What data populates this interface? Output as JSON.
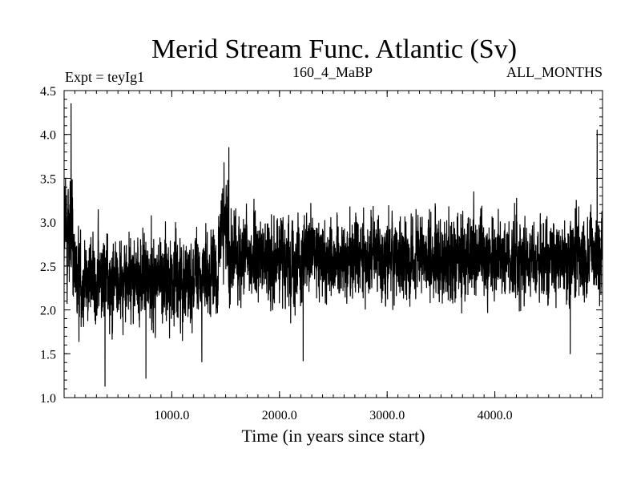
{
  "chart_data": {
    "type": "line",
    "title": "Merid Stream Func. Atlantic (Sv)",
    "subtitle_left": "Expt = teyIg1",
    "subtitle_center": "160_4_MaBP",
    "subtitle_right": "ALL_MONTHS",
    "xlabel": "Time (in years since start)",
    "ylabel": "",
    "xlim": [
      0,
      5000
    ],
    "ylim": [
      1.0,
      4.5
    ],
    "x_ticks": [
      1000,
      2000,
      3000,
      4000
    ],
    "x_tick_labels": [
      "1000.0",
      "2000.0",
      "3000.0",
      "4000.0"
    ],
    "y_ticks": [
      1.0,
      1.5,
      2.0,
      2.5,
      3.0,
      3.5,
      4.0,
      4.5
    ],
    "y_tick_labels": [
      "1.0",
      "1.5",
      "2.0",
      "2.5",
      "3.0",
      "3.5",
      "4.0",
      "4.5"
    ],
    "grid": false,
    "series": [
      {
        "name": "Merid Stream Func. Atlantic",
        "color": "#000000",
        "profile": {
          "description": "noisy annual series; segment means and spread",
          "segments": [
            {
              "x_start": 0,
              "x_end": 80,
              "mean": 2.9,
              "spread": 0.45
            },
            {
              "x_start": 80,
              "x_end": 1430,
              "mean": 2.35,
              "spread": 0.32
            },
            {
              "x_start": 1430,
              "x_end": 1520,
              "mean": 2.9,
              "spread": 0.35
            },
            {
              "x_start": 1520,
              "x_end": 5000,
              "mean": 2.6,
              "spread": 0.3
            }
          ],
          "extremes": [
            {
              "x": 65,
              "y": 4.35
            },
            {
              "x": 380,
              "y": 1.13
            },
            {
              "x": 760,
              "y": 1.22
            },
            {
              "x": 1530,
              "y": 3.85
            },
            {
              "x": 2220,
              "y": 1.42
            },
            {
              "x": 4950,
              "y": 4.05
            },
            {
              "x": 4700,
              "y": 1.5
            }
          ]
        }
      }
    ]
  }
}
